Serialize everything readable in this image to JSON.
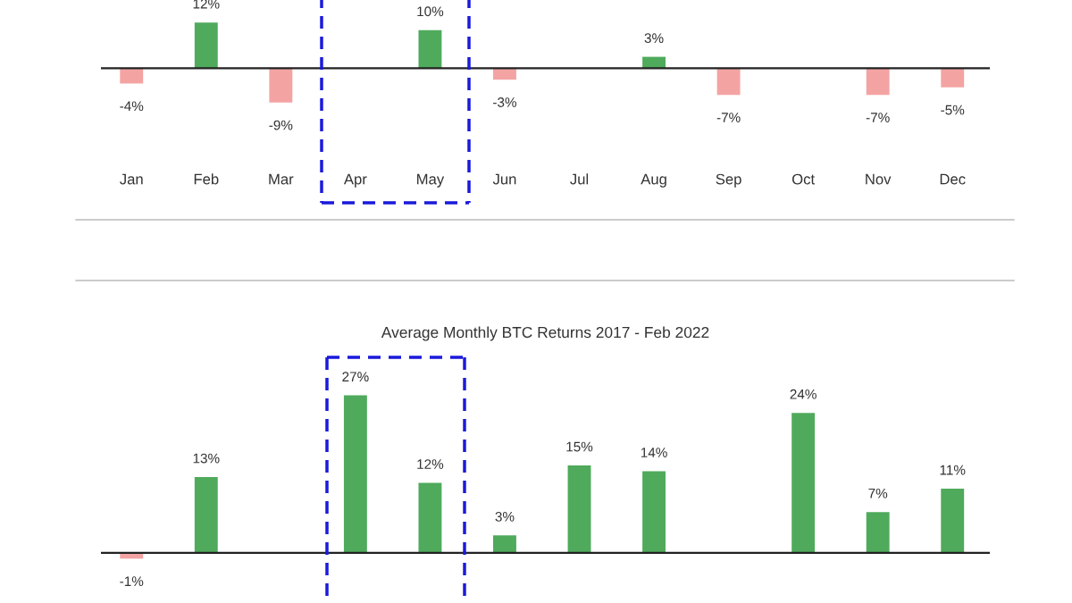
{
  "chart_data": [
    {
      "type": "bar",
      "categories": [
        "Jan",
        "Feb",
        "Mar",
        "Apr",
        "May",
        "Jun",
        "Jul",
        "Aug",
        "Sep",
        "Oct",
        "Nov",
        "Dec"
      ],
      "values": [
        -4,
        12,
        -9,
        null,
        10,
        -3,
        null,
        3,
        -7,
        null,
        -7,
        -5
      ],
      "colors": [
        "#f4a3a3",
        "#4faa5c",
        "#f4a3a3",
        "#4faa5c",
        "#4faa5c",
        "#f4a3a3",
        "#4faa5c",
        "#4faa5c",
        "#f4a3a3",
        "#4faa5c",
        "#f4a3a3",
        "#f4a3a3"
      ],
      "value_labels": [
        "-4%",
        "12%",
        "-9%",
        null,
        "10%",
        "-3%",
        null,
        "3%",
        "-7%",
        null,
        "-7%",
        "-5%"
      ],
      "tick_labels": "x"
    },
    {
      "type": "bar",
      "title": "Average Monthly BTC Returns 2017 - Feb 2022",
      "categories": [
        null,
        null,
        null,
        null,
        null,
        null,
        null,
        null,
        null,
        null,
        null,
        null
      ],
      "values": [
        -1,
        13,
        null,
        27,
        12,
        3,
        15,
        14,
        null,
        24,
        7,
        11
      ],
      "colors": [
        "#f4a3a3",
        "#4faa5c",
        "#f4a3a3",
        "#4faa5c",
        "#4faa5c",
        "#4faa5c",
        "#4faa5c",
        "#4faa5c",
        "#f4a3a3",
        "#4faa5c",
        "#4faa5c",
        "#4faa5c"
      ],
      "value_labels": [
        "-1%",
        "13%",
        null,
        "27%",
        "12%",
        "3%",
        "15%",
        "14%",
        null,
        "24%",
        "7%",
        "11%"
      ],
      "tick_labels": false
    }
  ]
}
